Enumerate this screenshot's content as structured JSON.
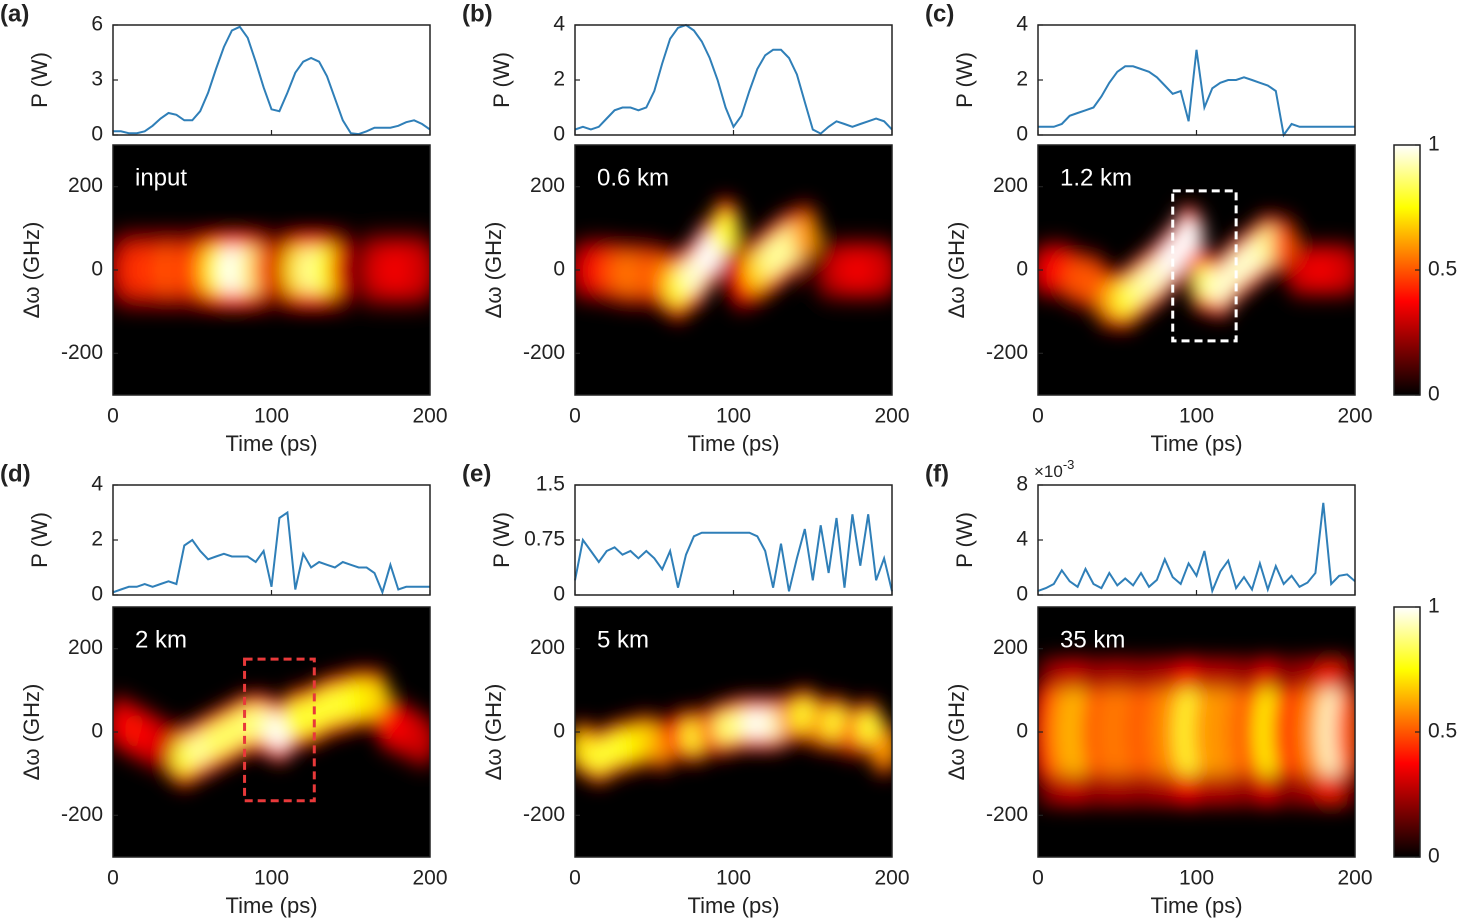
{
  "chart_data": [
    {
      "type": "spectrogram",
      "label": "(a)",
      "annotation": "input",
      "xlabel": "Time (ps)",
      "ylabel": "Δω (GHz)",
      "xlim": [
        0,
        200
      ],
      "xticks": [
        0,
        100,
        200
      ],
      "ylim": [
        -300,
        300
      ],
      "yticks": [
        -200,
        0,
        200
      ],
      "power": {
        "ylabel": "P (W)",
        "ylim": [
          0,
          6
        ],
        "yticks": [
          0,
          3,
          6
        ],
        "color": "#2f7fb8",
        "x": [
          0,
          5,
          10,
          15,
          20,
          25,
          30,
          35,
          40,
          45,
          50,
          55,
          60,
          65,
          70,
          75,
          80,
          85,
          90,
          95,
          100,
          105,
          110,
          115,
          120,
          125,
          130,
          135,
          140,
          145,
          150,
          155,
          160,
          165,
          170,
          175,
          180,
          185,
          190,
          195,
          200
        ],
        "values": [
          0.2,
          0.2,
          0.1,
          0.1,
          0.2,
          0.5,
          0.9,
          1.2,
          1.1,
          0.8,
          0.8,
          1.3,
          2.3,
          3.6,
          4.8,
          5.7,
          5.9,
          5.3,
          4.0,
          2.6,
          1.4,
          1.3,
          2.3,
          3.4,
          4.0,
          4.2,
          4.0,
          3.2,
          2.0,
          0.8,
          0.1,
          0.05,
          0.2,
          0.4,
          0.4,
          0.4,
          0.5,
          0.7,
          0.8,
          0.6,
          0.3
        ]
      },
      "ridge": {
        "width": 60,
        "time": [
          5,
          15,
          25,
          35,
          45,
          55,
          65,
          75,
          85,
          95,
          105,
          115,
          125,
          135,
          145,
          155,
          165,
          175,
          185,
          195
        ],
        "center": [
          0,
          0,
          0,
          0,
          0,
          0,
          0,
          0,
          0,
          0,
          0,
          0,
          0,
          0,
          0,
          0,
          0,
          0,
          0,
          0
        ],
        "intensity": [
          0.3,
          0.45,
          0.45,
          0.5,
          0.45,
          0.55,
          0.8,
          1,
          0.9,
          0.55,
          0.3,
          0.7,
          0.9,
          0.75,
          0.35,
          0.1,
          0.3,
          0.35,
          0.35,
          0.3
        ]
      }
    },
    {
      "type": "spectrogram",
      "label": "(b)",
      "annotation": "0.6 km",
      "xlabel": "Time (ps)",
      "ylabel": "Δω (GHz)",
      "xlim": [
        0,
        200
      ],
      "xticks": [
        0,
        100,
        200
      ],
      "ylim": [
        -300,
        300
      ],
      "yticks": [
        -200,
        0,
        200
      ],
      "power": {
        "ylabel": "P (W)",
        "ylim": [
          0,
          4
        ],
        "yticks": [
          0,
          2,
          4
        ],
        "color": "#2f7fb8",
        "x": [
          0,
          5,
          10,
          15,
          20,
          25,
          30,
          35,
          40,
          45,
          50,
          55,
          60,
          65,
          70,
          75,
          80,
          85,
          90,
          95,
          100,
          105,
          110,
          115,
          120,
          125,
          130,
          135,
          140,
          145,
          150,
          155,
          160,
          165,
          170,
          175,
          180,
          185,
          190,
          195,
          200
        ],
        "values": [
          0.2,
          0.3,
          0.2,
          0.3,
          0.6,
          0.9,
          1.0,
          1.0,
          0.9,
          1.0,
          1.6,
          2.6,
          3.5,
          3.9,
          4.0,
          3.8,
          3.4,
          2.8,
          2.0,
          1.0,
          0.3,
          0.7,
          1.6,
          2.4,
          2.9,
          3.1,
          3.1,
          2.8,
          2.2,
          1.2,
          0.2,
          0.05,
          0.3,
          0.5,
          0.4,
          0.3,
          0.4,
          0.5,
          0.6,
          0.5,
          0.2
        ]
      },
      "ridge": {
        "width": 50,
        "time": [
          5,
          15,
          25,
          35,
          45,
          55,
          65,
          75,
          85,
          95,
          105,
          115,
          125,
          135,
          145,
          155,
          165,
          175,
          185,
          195
        ],
        "center": [
          0,
          0,
          -5,
          -10,
          -10,
          -20,
          -40,
          -10,
          40,
          90,
          -20,
          0,
          30,
          60,
          80,
          0,
          0,
          0,
          0,
          0
        ],
        "intensity": [
          0.3,
          0.4,
          0.5,
          0.55,
          0.5,
          0.55,
          0.8,
          0.95,
          1,
          0.8,
          0.4,
          0.7,
          0.9,
          0.9,
          0.6,
          0.1,
          0.3,
          0.35,
          0.35,
          0.3
        ]
      }
    },
    {
      "type": "spectrogram",
      "label": "(c)",
      "annotation": "1.2 km",
      "xlabel": "Time (ps)",
      "ylabel": "Δω (GHz)",
      "xlim": [
        0,
        200
      ],
      "xticks": [
        0,
        100,
        200
      ],
      "ylim": [
        -300,
        300
      ],
      "yticks": [
        -200,
        0,
        200
      ],
      "box": {
        "x": [
          85,
          125
        ],
        "y": [
          -170,
          190
        ],
        "color": "#ffffff"
      },
      "colorbar": {
        "lim": [
          0,
          1
        ],
        "ticks": [
          0,
          0.5,
          1
        ]
      },
      "power": {
        "ylabel": "P (W)",
        "ylim": [
          0,
          4
        ],
        "yticks": [
          0,
          2,
          4
        ],
        "color": "#2f7fb8",
        "x": [
          0,
          5,
          10,
          15,
          20,
          25,
          30,
          35,
          40,
          45,
          50,
          55,
          60,
          65,
          70,
          75,
          80,
          85,
          90,
          95,
          100,
          105,
          110,
          115,
          120,
          125,
          130,
          135,
          140,
          145,
          150,
          155,
          160,
          165,
          170,
          175,
          180,
          185,
          190,
          195,
          200
        ],
        "values": [
          0.3,
          0.3,
          0.3,
          0.4,
          0.7,
          0.8,
          0.9,
          1.0,
          1.4,
          1.9,
          2.3,
          2.5,
          2.5,
          2.4,
          2.3,
          2.1,
          1.8,
          1.5,
          1.6,
          0.5,
          3.1,
          1.0,
          1.7,
          1.9,
          2.0,
          2.0,
          2.1,
          2.0,
          1.9,
          1.8,
          1.6,
          0.0,
          0.4,
          0.3,
          0.3,
          0.3,
          0.3,
          0.3,
          0.3,
          0.3,
          0.3
        ]
      },
      "ridge": {
        "width": 45,
        "time": [
          5,
          15,
          25,
          35,
          45,
          55,
          65,
          75,
          85,
          95,
          105,
          115,
          125,
          135,
          145,
          155,
          165,
          175,
          185,
          195
        ],
        "center": [
          0,
          0,
          -20,
          -30,
          -70,
          -70,
          -40,
          -10,
          30,
          80,
          -30,
          -40,
          0,
          30,
          60,
          60,
          0,
          0,
          0,
          0
        ],
        "intensity": [
          0.35,
          0.4,
          0.5,
          0.5,
          0.6,
          0.8,
          0.9,
          0.95,
          1,
          1,
          0.85,
          0.95,
          0.95,
          0.95,
          0.9,
          0.5,
          0.3,
          0.35,
          0.35,
          0.3
        ]
      }
    },
    {
      "type": "spectrogram",
      "label": "(d)",
      "annotation": "2 km",
      "xlabel": "Time (ps)",
      "ylabel": "Δω (GHz)",
      "xlim": [
        0,
        200
      ],
      "xticks": [
        0,
        100,
        200
      ],
      "ylim": [
        -300,
        300
      ],
      "yticks": [
        -200,
        0,
        200
      ],
      "box": {
        "x": [
          83,
          127
        ],
        "y": [
          -165,
          175
        ],
        "color": "#e8393a"
      },
      "power": {
        "ylabel": "P (W)",
        "ylim": [
          0,
          4
        ],
        "yticks": [
          0,
          2,
          4
        ],
        "color": "#2f7fb8",
        "x": [
          0,
          5,
          10,
          15,
          20,
          25,
          30,
          35,
          40,
          45,
          50,
          55,
          60,
          65,
          70,
          75,
          80,
          85,
          90,
          95,
          100,
          105,
          110,
          115,
          120,
          125,
          130,
          135,
          140,
          145,
          150,
          155,
          160,
          165,
          170,
          175,
          180,
          185,
          190,
          195,
          200
        ],
        "values": [
          0.1,
          0.2,
          0.3,
          0.3,
          0.4,
          0.3,
          0.4,
          0.5,
          0.4,
          1.8,
          2.0,
          1.6,
          1.3,
          1.4,
          1.5,
          1.4,
          1.4,
          1.4,
          1.2,
          1.6,
          0.3,
          2.8,
          3.0,
          0.2,
          1.5,
          1.0,
          1.2,
          1.1,
          1.0,
          1.2,
          1.1,
          1.0,
          1.0,
          0.8,
          0.1,
          1.1,
          0.2,
          0.3,
          0.3,
          0.3,
          0.3
        ]
      },
      "ridge": {
        "width": 45,
        "time": [
          5,
          15,
          25,
          35,
          45,
          55,
          65,
          75,
          85,
          95,
          105,
          115,
          125,
          135,
          145,
          155,
          165,
          175,
          185,
          195
        ],
        "center": [
          20,
          0,
          -20,
          -40,
          -60,
          -40,
          -20,
          0,
          20,
          20,
          0,
          30,
          40,
          60,
          70,
          80,
          80,
          20,
          0,
          -20
        ],
        "intensity": [
          0.35,
          0.4,
          0.35,
          0.3,
          0.8,
          0.9,
          0.85,
          0.85,
          0.85,
          0.9,
          1,
          0.8,
          0.8,
          0.8,
          0.8,
          0.75,
          0.7,
          0.4,
          0.35,
          0.3
        ]
      }
    },
    {
      "type": "spectrogram",
      "label": "(e)",
      "annotation": "5 km",
      "xlabel": "Time (ps)",
      "ylabel": "Δω (GHz)",
      "xlim": [
        0,
        200
      ],
      "xticks": [
        0,
        100,
        200
      ],
      "ylim": [
        -300,
        300
      ],
      "yticks": [
        -200,
        0,
        200
      ],
      "power": {
        "ylabel": "P (W)",
        "ylim": [
          0,
          1.5
        ],
        "yticks": [
          0,
          0.75,
          1.5
        ],
        "color": "#2f7fb8",
        "x": [
          0,
          5,
          10,
          15,
          20,
          25,
          30,
          35,
          40,
          45,
          50,
          55,
          60,
          65,
          70,
          75,
          80,
          85,
          90,
          95,
          100,
          105,
          110,
          115,
          120,
          125,
          130,
          135,
          140,
          145,
          150,
          155,
          160,
          165,
          170,
          175,
          180,
          185,
          190,
          195,
          200
        ],
        "values": [
          0.2,
          0.75,
          0.6,
          0.45,
          0.6,
          0.65,
          0.55,
          0.6,
          0.5,
          0.6,
          0.5,
          0.35,
          0.6,
          0.1,
          0.55,
          0.8,
          0.85,
          0.85,
          0.85,
          0.85,
          0.85,
          0.85,
          0.85,
          0.8,
          0.6,
          0.1,
          0.7,
          0.05,
          0.5,
          0.9,
          0.2,
          0.95,
          0.3,
          1.05,
          0.1,
          1.1,
          0.4,
          1.1,
          0.2,
          0.5,
          0.05
        ]
      },
      "ridge": {
        "width": 40,
        "time": [
          5,
          15,
          25,
          35,
          45,
          55,
          65,
          75,
          85,
          95,
          105,
          115,
          125,
          135,
          145,
          155,
          165,
          175,
          185,
          195
        ],
        "center": [
          -40,
          -60,
          -40,
          -30,
          -20,
          -30,
          -10,
          -10,
          0,
          10,
          20,
          20,
          20,
          30,
          40,
          20,
          20,
          0,
          10,
          -40
        ],
        "intensity": [
          0.7,
          0.8,
          0.8,
          0.75,
          0.7,
          0.6,
          0.4,
          0.8,
          0.5,
          0.85,
          0.9,
          1,
          0.95,
          0.6,
          0.8,
          0.6,
          0.8,
          0.5,
          0.8,
          0.6
        ]
      }
    },
    {
      "type": "spectrogram",
      "label": "(f)",
      "annotation": "35 km",
      "xlabel": "Time (ps)",
      "ylabel": "Δω (GHz)",
      "xlim": [
        0,
        200
      ],
      "xticks": [
        0,
        100,
        200
      ],
      "ylim": [
        -300,
        300
      ],
      "yticks": [
        -200,
        0,
        200
      ],
      "colorbar": {
        "lim": [
          0,
          1
        ],
        "ticks": [
          0,
          0.5,
          1
        ]
      },
      "power": {
        "ylabel": "P (W)",
        "ylim": [
          0,
          8
        ],
        "yticks": [
          0,
          4,
          8
        ],
        "color": "#2f7fb8",
        "scale_base": "×10",
        "scale_exponent": "-3",
        "x": [
          0,
          5,
          10,
          15,
          20,
          25,
          30,
          35,
          40,
          45,
          50,
          55,
          60,
          65,
          70,
          75,
          80,
          85,
          90,
          95,
          100,
          105,
          110,
          115,
          120,
          125,
          130,
          135,
          140,
          145,
          150,
          155,
          160,
          165,
          170,
          175,
          180,
          185,
          190,
          195,
          200
        ],
        "values": [
          0.3,
          0.5,
          0.8,
          1.8,
          1.0,
          0.6,
          1.9,
          0.8,
          0.5,
          1.6,
          0.7,
          1.2,
          0.7,
          1.6,
          0.6,
          1.1,
          2.6,
          1.3,
          0.8,
          2.3,
          1.4,
          3.2,
          0.3,
          1.7,
          2.5,
          0.5,
          1.3,
          0.4,
          2.3,
          0.4,
          2.1,
          0.8,
          1.4,
          0.6,
          0.9,
          1.6,
          6.7,
          0.8,
          1.4,
          1.5,
          1.0
        ]
      },
      "ridge": {
        "width": 110,
        "time": [
          5,
          15,
          25,
          35,
          45,
          55,
          65,
          75,
          85,
          95,
          105,
          115,
          125,
          135,
          145,
          155,
          165,
          175,
          185,
          195
        ],
        "center": [
          0,
          0,
          0,
          0,
          0,
          0,
          0,
          0,
          0,
          0,
          0,
          0,
          0,
          0,
          0,
          0,
          0,
          0,
          0,
          0
        ],
        "intensity": [
          0.4,
          0.6,
          0.65,
          0.5,
          0.55,
          0.55,
          0.5,
          0.55,
          0.6,
          0.8,
          0.6,
          0.6,
          0.55,
          0.5,
          0.75,
          0.45,
          0.5,
          0.6,
          0.95,
          0.5
        ]
      }
    }
  ]
}
